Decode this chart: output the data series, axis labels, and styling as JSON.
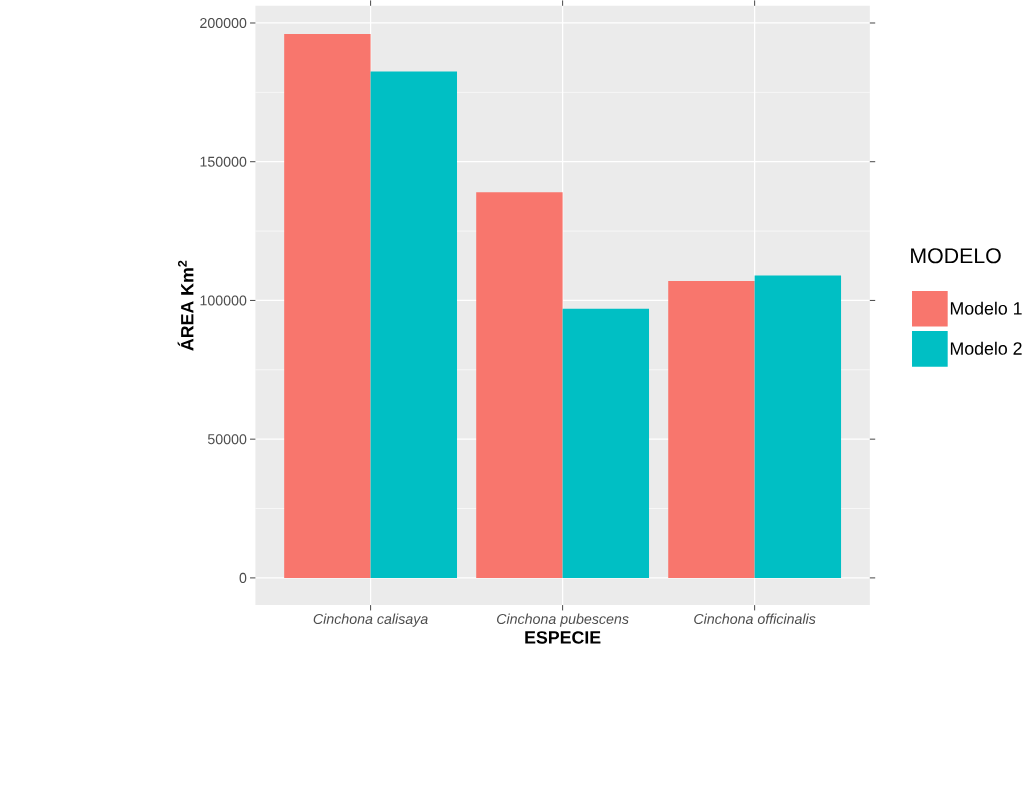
{
  "chart_data": {
    "type": "bar",
    "xlabel": "ESPECIE",
    "ylabel": "ÁREA Km$^{2}$",
    "legend_title": "MODELO",
    "categories": [
      "Cinchona calisaya",
      "Cinchona pubescens",
      "Cinchona officinalis"
    ],
    "series": [
      {
        "name": "Modelo 1",
        "color": "#f8766d",
        "values": [
          196000,
          139000,
          107000
        ]
      },
      {
        "name": "Modelo 2",
        "color": "#00bfc4",
        "values": [
          182500,
          97000,
          109000
        ]
      }
    ],
    "ylim": [
      -9800,
      206200
    ],
    "yticks": [
      0,
      50000,
      100000,
      150000,
      200000
    ],
    "grid": true,
    "legend": "right"
  }
}
